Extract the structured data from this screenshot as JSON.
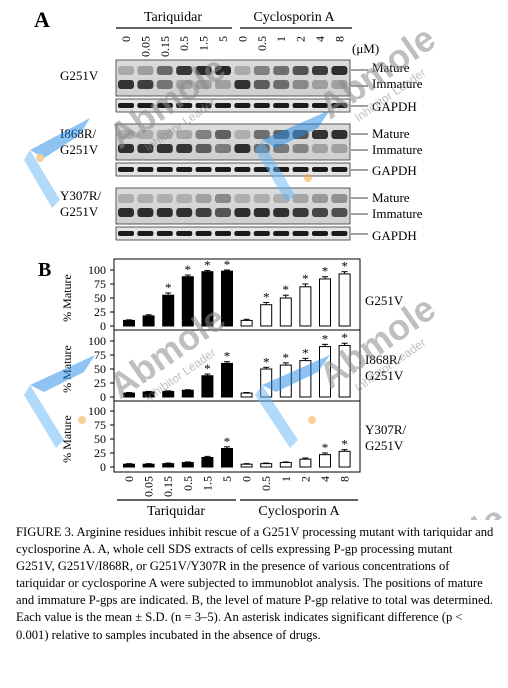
{
  "panel_a": {
    "label": "A",
    "group_tariquidar": "Tariquidar",
    "group_cyclosporin": "Cyclosporin A",
    "unit": "(μM)",
    "tariquidar_conc": [
      "0",
      "0.05",
      "0.15",
      "0.5",
      "1.5",
      "5"
    ],
    "cyclosporin_conc": [
      "0",
      "0.5",
      "1",
      "2",
      "4",
      "8"
    ],
    "rows": [
      {
        "label": "G251V",
        "mature": "Mature",
        "immature": "Immature",
        "loading": "GAPDH"
      },
      {
        "label": "I868R/ G251V",
        "label_line1": "I868R/",
        "label_line2": "G251V",
        "mature": "Mature",
        "immature": "Immature",
        "loading": "GAPDH"
      },
      {
        "label": "Y307R/ G251V",
        "label_line1": "Y307R/",
        "label_line2": "G251V",
        "mature": "Mature",
        "immature": "Immature",
        "loading": "GAPDH"
      }
    ]
  },
  "panel_b": {
    "label": "B",
    "ylabel": "% Mature",
    "yticks": [
      "0",
      "25",
      "50",
      "75",
      "100"
    ],
    "group_tariquidar": "Tariquidar",
    "group_cyclosporin": "Cyclosporin A",
    "tariquidar_conc": [
      "0",
      "0.05",
      "0.15",
      "0.5",
      "1.5",
      "5"
    ],
    "cyclosporin_conc": [
      "0",
      "0.5",
      "1",
      "2",
      "4",
      "8"
    ],
    "significance_mark": "*"
  },
  "chart_data": [
    {
      "type": "bar",
      "title": "G251V",
      "ylabel": "% Mature",
      "ylim": [
        0,
        100
      ],
      "categories": [
        "0",
        "0.05",
        "0.15",
        "0.5",
        "1.5",
        "5",
        "0",
        "0.5",
        "1",
        "2",
        "4",
        "8"
      ],
      "series": [
        {
          "name": "Tariquidar",
          "color": "#000000",
          "values": [
            10,
            18,
            55,
            88,
            97,
            98,
            null,
            null,
            null,
            null,
            null,
            null
          ],
          "errors": [
            1,
            2,
            4,
            3,
            2,
            2,
            null,
            null,
            null,
            null,
            null,
            null
          ],
          "significant": [
            false,
            false,
            true,
            true,
            true,
            true,
            false,
            false,
            false,
            false,
            false,
            false
          ]
        },
        {
          "name": "Cyclosporin A",
          "color": "#ffffff",
          "values": [
            null,
            null,
            null,
            null,
            null,
            null,
            10,
            38,
            50,
            70,
            84,
            93
          ],
          "errors": [
            null,
            null,
            null,
            null,
            null,
            null,
            2,
            4,
            5,
            5,
            4,
            4
          ],
          "significant": [
            false,
            false,
            false,
            false,
            false,
            false,
            false,
            true,
            true,
            true,
            true,
            true
          ]
        }
      ]
    },
    {
      "type": "bar",
      "title": "I868R/ G251V",
      "ylabel": "% Mature",
      "ylim": [
        0,
        100
      ],
      "categories": [
        "0",
        "0.05",
        "0.15",
        "0.5",
        "1.5",
        "5",
        "0",
        "0.5",
        "1",
        "2",
        "4",
        "8"
      ],
      "series": [
        {
          "name": "Tariquidar",
          "color": "#000000",
          "values": [
            7,
            9,
            10,
            12,
            38,
            60,
            null,
            null,
            null,
            null,
            null,
            null
          ],
          "errors": [
            1,
            1,
            1,
            1,
            3,
            3,
            null,
            null,
            null,
            null,
            null,
            null
          ],
          "significant": [
            false,
            false,
            false,
            false,
            true,
            true,
            false,
            false,
            false,
            false,
            false,
            false
          ]
        },
        {
          "name": "Cyclosporin A",
          "color": "#ffffff",
          "values": [
            null,
            null,
            null,
            null,
            null,
            null,
            7,
            50,
            57,
            65,
            90,
            92
          ],
          "errors": [
            null,
            null,
            null,
            null,
            null,
            null,
            1,
            3,
            4,
            4,
            4,
            4
          ],
          "significant": [
            false,
            false,
            false,
            false,
            false,
            false,
            false,
            true,
            true,
            true,
            true,
            true
          ]
        }
      ]
    },
    {
      "type": "bar",
      "title": "Y307R/ G251V",
      "ylabel": "% Mature",
      "ylim": [
        0,
        100
      ],
      "categories": [
        "0",
        "0.05",
        "0.15",
        "0.5",
        "1.5",
        "5",
        "0",
        "0.5",
        "1",
        "2",
        "4",
        "8"
      ],
      "series": [
        {
          "name": "Tariquidar",
          "color": "#000000",
          "values": [
            5,
            5,
            6,
            8,
            17,
            33,
            null,
            null,
            null,
            null,
            null,
            null
          ],
          "errors": [
            1,
            1,
            1,
            1,
            2,
            3,
            null,
            null,
            null,
            null,
            null,
            null
          ],
          "significant": [
            false,
            false,
            false,
            false,
            false,
            true,
            false,
            false,
            false,
            false,
            false,
            false
          ]
        },
        {
          "name": "Cyclosporin A",
          "color": "#ffffff",
          "values": [
            null,
            null,
            null,
            null,
            null,
            null,
            5,
            6,
            8,
            14,
            22,
            28
          ],
          "errors": [
            null,
            null,
            null,
            null,
            null,
            null,
            1,
            1,
            1,
            2,
            3,
            3
          ],
          "significant": [
            false,
            false,
            false,
            false,
            false,
            false,
            false,
            false,
            false,
            false,
            true,
            true
          ]
        }
      ]
    }
  ],
  "caption": "FIGURE 3. Arginine residues inhibit rescue of a G251V processing mutant with tariquidar and cyclosporine A. A, whole cell SDS extracts of cells expressing P-gp processing mutant G251V, G251V/I868R, or G251V/Y307R in the presence of various concentrations of tariquidar or cyclosporine A were subjected to immunoblot analysis. The positions of mature and immature P-gps are indicated. B, the level of mature P-gp relative to total was determined. Each value is the mean ± S.D. (n = 3–5). An asterisk indicates significant difference (p < 0.001) relative to samples incubated in the absence of drugs.",
  "watermark": {
    "brand": "Abmole",
    "tagline": "Inhibitor Leader",
    "color": "#1e88e5"
  }
}
